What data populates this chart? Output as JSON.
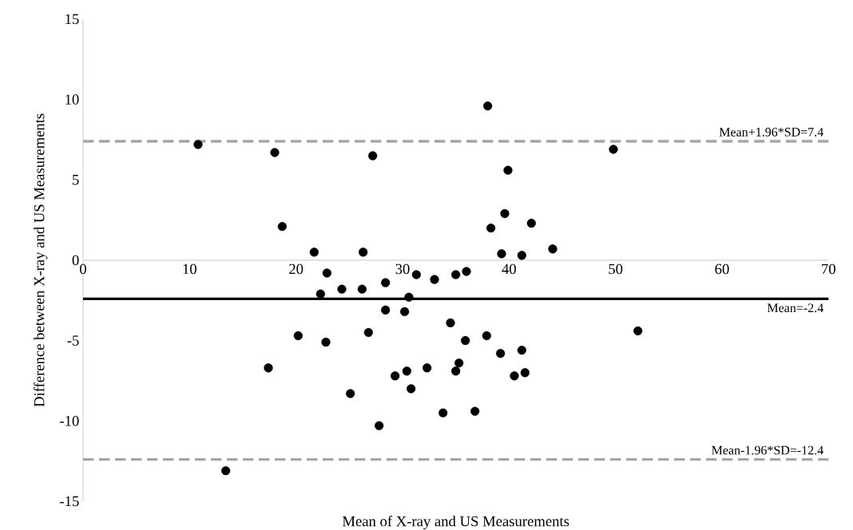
{
  "chart_data": {
    "type": "scatter",
    "xlabel": "Mean of X-ray and US Measurements",
    "ylabel": "Difference between X-ray and US Measurements",
    "xlim": [
      0,
      70
    ],
    "ylim": [
      -15,
      15
    ],
    "xticks": [
      0,
      10,
      20,
      30,
      40,
      50,
      60,
      70
    ],
    "yticks": [
      -15,
      -10,
      -5,
      0,
      5,
      10,
      15
    ],
    "grid": false,
    "marker": "circle",
    "ref_lines": [
      {
        "axis": "y",
        "value": 7.4,
        "label": "Mean+1.96*SD=7.4",
        "color": "#a6a6a6",
        "line_style": "dashed"
      },
      {
        "axis": "y",
        "value": -2.4,
        "label": "Mean=-2.4",
        "color": "#000000",
        "line_style": "solid"
      },
      {
        "axis": "y",
        "value": -12.4,
        "label": "Mean-1.96*SD=-12.4",
        "color": "#a6a6a6",
        "line_style": "dashed"
      }
    ],
    "series": [
      {
        "color": "#000000",
        "x": [
          10.8,
          18.0,
          27.2,
          18.7,
          21.7,
          26.3,
          22.9,
          22.3,
          24.3,
          26.2,
          28.4,
          31.3,
          33.0,
          30.6,
          28.4,
          30.2,
          20.2,
          22.8,
          26.8,
          17.4,
          29.3,
          30.4,
          32.3,
          30.8,
          25.1,
          33.8,
          27.8,
          13.4,
          34.5,
          38.0,
          49.8,
          39.9,
          39.6,
          38.3,
          42.1,
          39.3,
          41.2,
          44.1,
          35.0,
          36.0,
          35.9,
          37.9,
          39.2,
          41.2,
          52.1,
          35.3,
          35.0,
          40.5,
          41.5,
          36.8
        ],
        "values": [
          7.2,
          6.7,
          6.5,
          2.1,
          0.5,
          0.5,
          -0.8,
          -2.1,
          -1.8,
          -1.8,
          -1.4,
          -0.9,
          -1.2,
          -2.3,
          -3.1,
          -3.2,
          -4.7,
          -5.1,
          -4.5,
          -6.7,
          -7.2,
          -6.9,
          -6.7,
          -8.0,
          -8.3,
          -9.5,
          -10.3,
          -13.1,
          -3.9,
          9.6,
          6.9,
          5.6,
          2.9,
          2.0,
          2.3,
          0.4,
          0.3,
          0.7,
          -0.9,
          -0.7,
          -5.0,
          -4.7,
          -5.8,
          -5.6,
          -4.4,
          -6.4,
          -6.9,
          -7.2,
          -7.0,
          -9.4
        ]
      }
    ]
  }
}
